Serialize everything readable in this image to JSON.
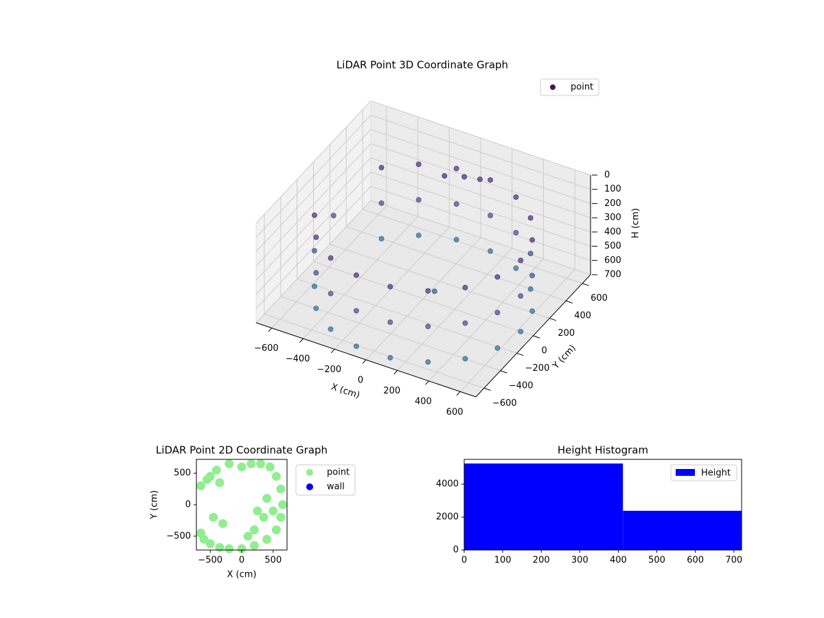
{
  "chart_data": [
    {
      "type": "scatter3d",
      "title": "LiDAR Point 3D Coordinate Graph",
      "xlabel": "X (cm)",
      "ylabel": "Y (cm)",
      "zlabel": "H (cm)",
      "xlim": [
        -700,
        700
      ],
      "ylim": [
        -700,
        700
      ],
      "zlim": [
        700,
        0
      ],
      "xticks": [
        {
          "value": -600,
          "label": "−600"
        },
        {
          "value": -400,
          "label": "−400"
        },
        {
          "value": -200,
          "label": "−200"
        },
        0,
        200,
        400,
        600
      ],
      "yticks": [
        {
          "value": -600,
          "label": "−600"
        },
        {
          "value": -400,
          "label": "−400"
        },
        {
          "value": -200,
          "label": "−200"
        },
        0,
        200,
        400,
        600
      ],
      "zticks": [
        0,
        100,
        200,
        300,
        400,
        500,
        600,
        700
      ],
      "grid": true,
      "legend": "upper right",
      "series": [
        {
          "name": "point",
          "colormap": "viridis",
          "x": [
            -583,
            -583,
            -583,
            -475,
            -475,
            -475,
            -310,
            -310,
            -310,
            -108,
            -108,
            -108,
            108,
            108,
            108,
            310,
            310,
            310,
            475,
            475,
            475,
            583,
            583,
            583,
            620,
            620,
            620,
            583,
            583,
            583,
            475,
            475,
            475,
            310,
            310,
            310,
            108,
            108,
            108,
            -108,
            -108,
            -108,
            -310,
            -310,
            -310,
            -475,
            -475,
            -475,
            -100,
            0,
            100,
            -650,
            150
          ],
          "y": [
            -212,
            -212,
            -212,
            -399,
            -399,
            -399,
            -537,
            -537,
            -537,
            -611,
            -611,
            -611,
            -611,
            -611,
            -611,
            -537,
            -537,
            -537,
            -399,
            -399,
            -399,
            -212,
            -212,
            -212,
            0,
            0,
            0,
            212,
            212,
            212,
            399,
            399,
            399,
            537,
            537,
            537,
            611,
            611,
            611,
            611,
            611,
            611,
            537,
            537,
            537,
            399,
            399,
            399,
            450,
            500,
            500,
            150,
            -150
          ],
          "z": [
            200,
            450,
            700,
            200,
            450,
            700,
            200,
            450,
            700,
            200,
            450,
            700,
            200,
            450,
            700,
            200,
            450,
            700,
            200,
            450,
            700,
            200,
            450,
            700,
            200,
            450,
            700,
            200,
            450,
            700,
            200,
            450,
            700,
            200,
            450,
            700,
            200,
            450,
            700,
            200,
            450,
            700,
            200,
            450,
            700,
            200,
            450,
            700,
            150,
            150,
            130,
            450,
            500
          ]
        }
      ]
    },
    {
      "type": "scatter",
      "title": "LiDAR Point 2D Coordinate Graph",
      "xlabel": "X (cm)",
      "ylabel": "Y (cm)",
      "xlim": [
        -720,
        720
      ],
      "ylim": [
        -720,
        720
      ],
      "xticks": [
        {
          "value": -500,
          "label": "−500"
        },
        0,
        500
      ],
      "yticks": [
        {
          "value": -500,
          "label": "−500"
        },
        0,
        500
      ],
      "legend": "outside upper right",
      "series": [
        {
          "name": "point",
          "color": "#90ee90",
          "x": [
            -650,
            -600,
            -500,
            -350,
            -200,
            0,
            200,
            400,
            550,
            620,
            650,
            620,
            550,
            450,
            300,
            150,
            0,
            -200,
            -400,
            -550,
            -650,
            -450,
            -300,
            200,
            350,
            500,
            400,
            250,
            100,
            -500,
            -350
          ],
          "y": [
            -450,
            -550,
            -620,
            -680,
            -700,
            -700,
            -650,
            -550,
            -400,
            -200,
            0,
            250,
            450,
            600,
            650,
            650,
            600,
            650,
            550,
            400,
            300,
            -200,
            -300,
            -400,
            -200,
            -100,
            100,
            -100,
            -500,
            450,
            350
          ]
        },
        {
          "name": "wall",
          "color": "#0000ff",
          "x": [],
          "y": []
        }
      ]
    },
    {
      "type": "histogram",
      "title": "Height Histogram",
      "bins": [
        0,
        412,
        720
      ],
      "counts": [
        5250,
        2380
      ],
      "series_name": "Height",
      "color": "#0000ff",
      "xlim": [
        0,
        720
      ],
      "xticks": [
        0,
        100,
        200,
        300,
        400,
        500,
        600,
        700
      ],
      "ylim": [
        0,
        5500
      ],
      "yticks": [
        0,
        2000,
        4000
      ],
      "legend": "upper right"
    }
  ]
}
